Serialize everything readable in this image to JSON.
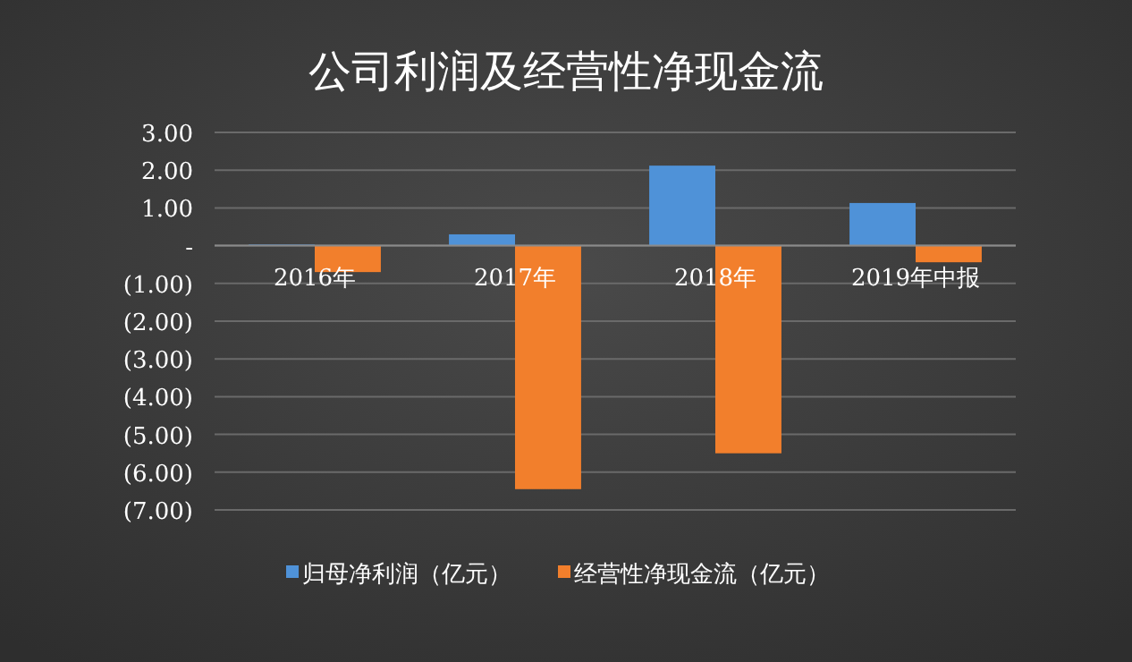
{
  "chart_data": {
    "type": "bar",
    "title": "公司利润及经营性净现金流",
    "categories": [
      "2016年",
      "2017年",
      "2018年",
      "2019年中报"
    ],
    "series": [
      {
        "name": "归母净利润（亿元）",
        "color": "#4f92d8",
        "values": [
          0.03,
          0.3,
          2.12,
          1.13
        ]
      },
      {
        "name": "经营性净现金流（亿元）",
        "color": "#f27f2c",
        "values": [
          -0.7,
          -6.45,
          -5.5,
          -0.44
        ]
      }
    ],
    "ylim": [
      -7,
      3
    ],
    "yticks": [
      {
        "value": 3,
        "label": "3.00"
      },
      {
        "value": 2,
        "label": "2.00"
      },
      {
        "value": 1,
        "label": "1.00"
      },
      {
        "value": 0,
        "label": "-"
      },
      {
        "value": -1,
        "label": "(1.00)"
      },
      {
        "value": -2,
        "label": "(2.00)"
      },
      {
        "value": -3,
        "label": "(3.00)"
      },
      {
        "value": -4,
        "label": "(4.00)"
      },
      {
        "value": -5,
        "label": "(5.00)"
      },
      {
        "value": -6,
        "label": "(6.00)"
      },
      {
        "value": -7,
        "label": "(7.00)"
      }
    ],
    "grid": "y",
    "legend": "bottom"
  }
}
